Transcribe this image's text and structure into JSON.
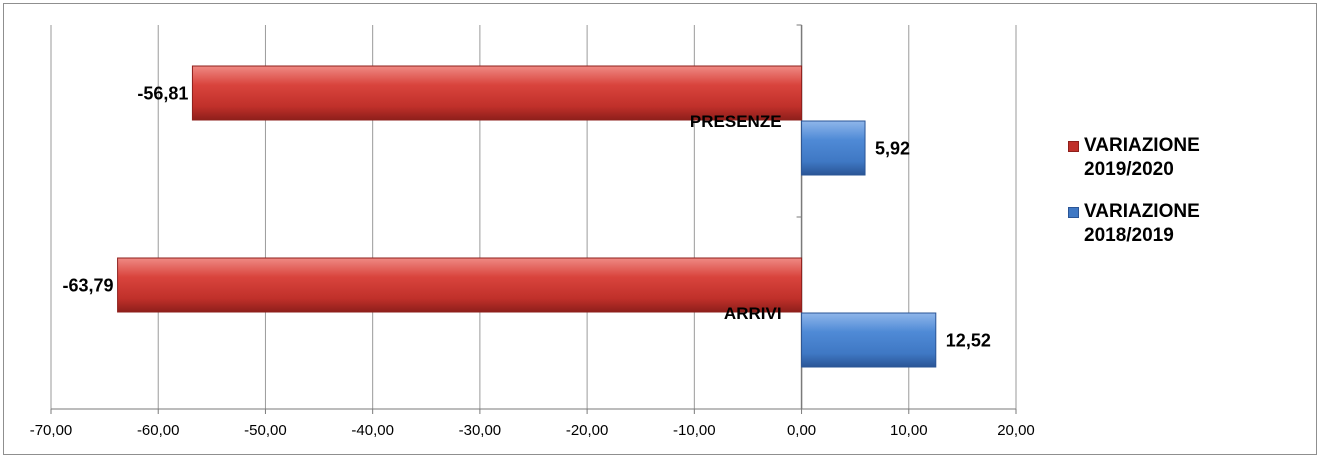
{
  "chart_data": {
    "type": "bar",
    "orientation": "horizontal",
    "categories": [
      "PRESENZE",
      "ARRIVI"
    ],
    "series": [
      {
        "name": "VARIAZIONE 2019/2020",
        "values": [
          -56.81,
          -63.79
        ],
        "value_labels": [
          "-56,81",
          "-63,79"
        ],
        "color": "#c0302a"
      },
      {
        "name": "VARIAZIONE 2018/2019",
        "values": [
          5.92,
          12.52
        ],
        "value_labels": [
          "5,92",
          "12,52"
        ],
        "color": "#3f78c4"
      }
    ],
    "x_ticks": [
      "-70,00",
      "-60,00",
      "-50,00",
      "-40,00",
      "-30,00",
      "-20,00",
      "-10,00",
      "0,00",
      "10,00",
      "20,00"
    ],
    "x_tick_values": [
      -70,
      -60,
      -50,
      -40,
      -30,
      -20,
      -10,
      0,
      10,
      20
    ],
    "xlim": [
      -70,
      20
    ],
    "grid": "vertical",
    "legend_position": "right"
  },
  "legend": {
    "items": [
      {
        "label": "VARIAZIONE 2019/2020",
        "color": "#c0302a"
      },
      {
        "label": "VARIAZIONE 2018/2019",
        "color": "#3f78c4"
      }
    ]
  }
}
